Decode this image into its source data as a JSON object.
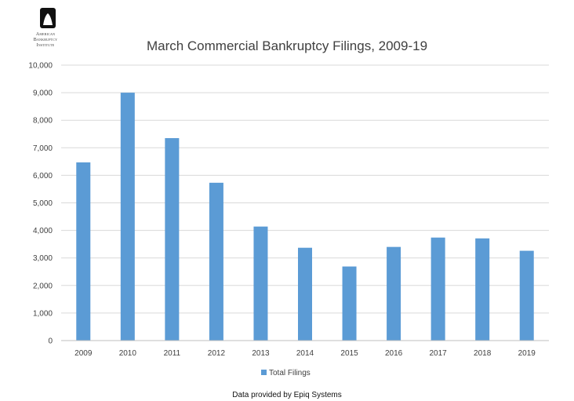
{
  "logo": {
    "line1": "American",
    "line2": "Bankruptcy",
    "line3": "Institute"
  },
  "footer_note": "Data provided by Epiq Systems",
  "colors": {
    "bar": "#5B9BD5",
    "grid": "#D9D9D9",
    "axis": "#BFBFBF",
    "text": "#404040"
  },
  "chart_data": {
    "type": "bar",
    "title": "March Commercial Bankruptcy Filings, 2009-19",
    "categories": [
      "2009",
      "2010",
      "2011",
      "2012",
      "2013",
      "2014",
      "2015",
      "2016",
      "2017",
      "2018",
      "2019"
    ],
    "series": [
      {
        "name": "Total Filings",
        "values": [
          6470,
          9000,
          7350,
          5730,
          4140,
          3370,
          2690,
          3400,
          3740,
          3710,
          3260
        ]
      }
    ],
    "ylim": [
      0,
      10000
    ],
    "yticks": [
      "0",
      "1,000",
      "2,000",
      "3,000",
      "4,000",
      "5,000",
      "6,000",
      "7,000",
      "8,000",
      "9,000",
      "10,000"
    ],
    "grid": true,
    "legend": "bottom"
  }
}
